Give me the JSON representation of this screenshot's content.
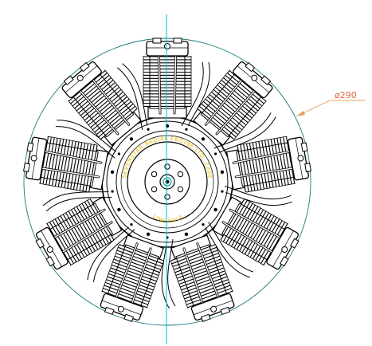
{
  "drawing": {
    "dimension_label": "ø290",
    "hub_text_upper": "SEVENSTAR RADIAL ENGINE LTD. 2008",
    "hub_text_lower": "LIME HOLE",
    "cylinder_count": 9,
    "colors": {
      "outline": "#000000",
      "centerline": "#00bcd4",
      "boundary_circle": "#16777a",
      "dimension": "#e8a050",
      "dimension_text": "#e06a3c",
      "hub_text": "#e8b800",
      "hub_accent": "#00a896",
      "background": "#ffffff"
    }
  }
}
